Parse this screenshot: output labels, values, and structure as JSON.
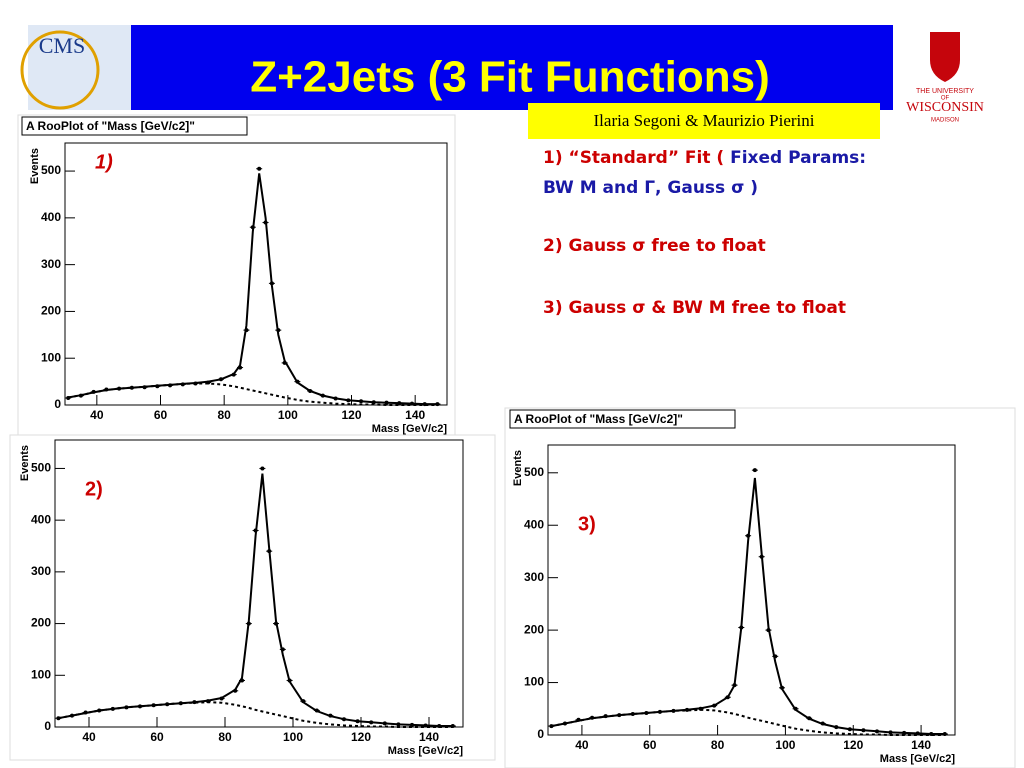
{
  "header": {
    "title": "Z+2Jets (3 Fit Functions)",
    "author": "Ilaria Segoni & Maurizio Pierini",
    "cms_logo": "CMS",
    "university_logo": [
      "THE UNIVERSITY",
      "OF",
      "WISCONSIN",
      "MADISON"
    ]
  },
  "notes": [
    [
      {
        "text": "1) “Standard” Fit ( ",
        "color": "#cc0000"
      },
      {
        "text": "Fixed Params:",
        "color": "#1a1aa6"
      }
    ],
    [
      {
        "text": "BW M and Γ, Gauss σ )",
        "color": "#1a1aa6"
      }
    ],
    [
      {
        "text": "2) Gauss σ free to float",
        "color": "#cc0000"
      }
    ],
    [
      {
        "text": "3) Gauss σ & BW M free to float",
        "color": "#cc0000"
      }
    ]
  ],
  "chart_data": [
    {
      "type": "scatter",
      "title": "A RooPlot of \"Mass [GeV/c2]\"",
      "label": "1)",
      "x_label": "Mass [GeV/c2]",
      "y_label": "Events",
      "xlim": [
        30,
        150
      ],
      "xticks": [
        40,
        60,
        80,
        100,
        120,
        140
      ],
      "ylim": [
        0,
        560
      ],
      "yticks": [
        0,
        100,
        200,
        300,
        400,
        500
      ],
      "x": [
        31,
        35,
        39,
        43,
        47,
        51,
        55,
        59,
        63,
        67,
        71,
        75,
        79,
        83,
        85,
        87,
        89,
        91,
        93,
        95,
        97,
        99,
        103,
        107,
        111,
        115,
        119,
        123,
        127,
        131,
        135,
        139,
        143,
        147
      ],
      "series": [
        {
          "name": "data",
          "style": "points",
          "color": "#000000",
          "values": [
            15,
            20,
            28,
            33,
            35,
            37,
            38,
            40,
            42,
            44,
            46,
            48,
            55,
            65,
            80,
            160,
            380,
            505,
            390,
            260,
            160,
            90,
            50,
            30,
            20,
            14,
            10,
            8,
            6,
            5,
            4,
            3,
            2,
            2
          ]
        },
        {
          "name": "fit",
          "style": "line",
          "color": "#000000",
          "values": [
            16,
            21,
            27,
            32,
            35,
            37,
            39,
            41,
            43,
            45,
            47,
            50,
            55,
            66,
            85,
            170,
            370,
            495,
            400,
            255,
            150,
            95,
            48,
            30,
            20,
            14,
            10,
            8,
            6,
            5,
            4,
            3,
            2,
            2
          ]
        },
        {
          "name": "background",
          "style": "dashed",
          "color": "#000000",
          "values": [
            16,
            21,
            27,
            32,
            35,
            37,
            39,
            41,
            43,
            45,
            46,
            46,
            44,
            40,
            37,
            34,
            31,
            28,
            25,
            22,
            19,
            16,
            11,
            7,
            5,
            3,
            2,
            1,
            1,
            0,
            0,
            0,
            0,
            0
          ]
        }
      ]
    },
    {
      "type": "scatter",
      "title": "A RooPlot of \"Mass [GeV/c2]\"",
      "label": "2)",
      "x_label": "Mass [GeV/c2]",
      "y_label": "Events",
      "xlim": [
        30,
        150
      ],
      "xticks": [
        40,
        60,
        80,
        100,
        120,
        140
      ],
      "ylim": [
        0,
        555
      ],
      "yticks": [
        0,
        100,
        200,
        300,
        400,
        500
      ],
      "x": [
        31,
        35,
        39,
        43,
        47,
        51,
        55,
        59,
        63,
        67,
        71,
        75,
        79,
        83,
        85,
        87,
        89,
        91,
        93,
        95,
        97,
        99,
        103,
        107,
        111,
        115,
        119,
        123,
        127,
        131,
        135,
        139,
        143,
        147
      ],
      "series": [
        {
          "name": "data",
          "style": "points",
          "color": "#000000",
          "values": [
            17,
            22,
            28,
            32,
            35,
            38,
            40,
            42,
            44,
            46,
            48,
            50,
            55,
            70,
            90,
            200,
            380,
            500,
            340,
            200,
            150,
            90,
            50,
            32,
            22,
            15,
            11,
            9,
            7,
            5,
            4,
            3,
            2,
            2
          ]
        },
        {
          "name": "fit",
          "style": "line",
          "color": "#000000",
          "values": [
            17,
            22,
            27,
            32,
            35,
            38,
            40,
            42,
            44,
            46,
            48,
            51,
            56,
            72,
            95,
            205,
            370,
            490,
            345,
            205,
            140,
            88,
            48,
            31,
            21,
            15,
            11,
            9,
            7,
            5,
            4,
            3,
            2,
            2
          ]
        },
        {
          "name": "background",
          "style": "dashed",
          "color": "#000000",
          "values": [
            17,
            22,
            27,
            32,
            35,
            38,
            40,
            42,
            44,
            46,
            47,
            48,
            47,
            43,
            40,
            37,
            33,
            30,
            27,
            24,
            21,
            18,
            12,
            8,
            5,
            3,
            2,
            1,
            1,
            0,
            0,
            0,
            0,
            0
          ]
        }
      ]
    },
    {
      "type": "scatter",
      "title": "A RooPlot of \"Mass [GeV/c2]\"",
      "label": "3)",
      "x_label": "Mass [GeV/c2]",
      "y_label": "Events",
      "xlim": [
        30,
        150
      ],
      "xticks": [
        40,
        60,
        80,
        100,
        120,
        140
      ],
      "ylim": [
        0,
        553
      ],
      "yticks": [
        0,
        100,
        200,
        300,
        400,
        500
      ],
      "x": [
        31,
        35,
        39,
        43,
        47,
        51,
        55,
        59,
        63,
        67,
        71,
        75,
        79,
        83,
        85,
        87,
        89,
        91,
        93,
        95,
        97,
        99,
        103,
        107,
        111,
        115,
        119,
        123,
        127,
        131,
        135,
        139,
        143,
        147
      ],
      "series": [
        {
          "name": "data",
          "style": "points",
          "color": "#000000",
          "values": [
            17,
            22,
            29,
            33,
            36,
            38,
            40,
            42,
            44,
            46,
            48,
            50,
            56,
            72,
            95,
            205,
            380,
            505,
            340,
            200,
            150,
            90,
            50,
            32,
            22,
            15,
            11,
            9,
            7,
            5,
            4,
            3,
            2,
            2
          ]
        },
        {
          "name": "fit",
          "style": "line",
          "color": "#000000",
          "values": [
            17,
            22,
            27,
            32,
            35,
            38,
            40,
            42,
            44,
            46,
            48,
            51,
            56,
            72,
            95,
            205,
            370,
            490,
            345,
            205,
            140,
            88,
            48,
            31,
            21,
            15,
            11,
            9,
            7,
            5,
            4,
            3,
            2,
            2
          ]
        },
        {
          "name": "background",
          "style": "dashed",
          "color": "#000000",
          "values": [
            17,
            22,
            27,
            32,
            35,
            38,
            40,
            42,
            44,
            46,
            47,
            48,
            47,
            43,
            40,
            37,
            33,
            30,
            27,
            24,
            21,
            18,
            12,
            8,
            5,
            3,
            2,
            1,
            1,
            0,
            0,
            0,
            0,
            0
          ]
        }
      ]
    }
  ]
}
